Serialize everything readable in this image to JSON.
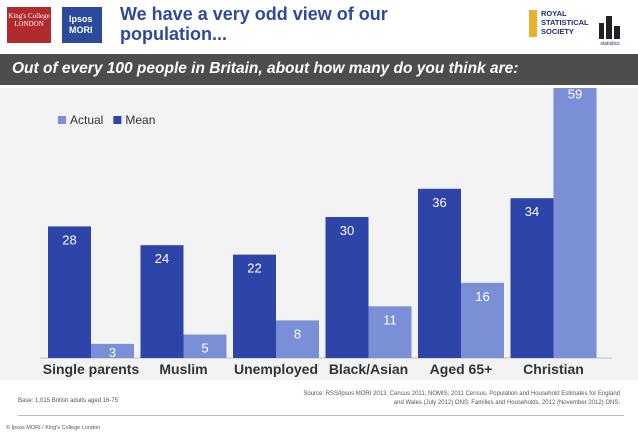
{
  "header": {
    "title": "We have a very odd view of our population...",
    "kings_logo_text": "King's College LONDON",
    "ipsos_logo_text": "Ipsos MORI",
    "rss_logo_text": "ROYAL STATISTICAL SOCIETY",
    "stats_logo_text": "statistics"
  },
  "banner": {
    "text": "Out of every 100 people in Britain, about how many do you think are:"
  },
  "chart_data": {
    "type": "bar",
    "categories": [
      "Single parents",
      "Muslim",
      "Unemployed",
      "Black/Asian",
      "Aged 65+",
      "Christian"
    ],
    "series": [
      {
        "name": "Actual",
        "values": [
          3,
          5,
          8,
          11,
          16,
          59
        ],
        "color": "#7b8fd6"
      },
      {
        "name": "Mean",
        "values": [
          28,
          24,
          22,
          30,
          36,
          34
        ],
        "color": "#2d44a8"
      }
    ],
    "ylim": [
      0,
      60
    ],
    "legend": "top-left",
    "grid": false
  },
  "footer": {
    "base": "Base: 1,015 British adults aged 16-75",
    "source": "Source: RSS/Ipsos MORI 2013; Census 2011, NOMIS; 2011 Census, Population and Household Estimates for England and Wales (July 2012) ONS; Families and Households, 2012 (November 2012) ONS.",
    "copyright": "© Ipsos MORI / King's College London"
  }
}
